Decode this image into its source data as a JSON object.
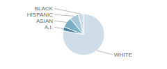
{
  "chart_data": {
    "type": "pie",
    "categories": [
      "WHITE",
      "A.I.",
      "ASIAN",
      "HISPANIC",
      "BLACK"
    ],
    "values": [
      78,
      3,
      8,
      7,
      4
    ],
    "colors": [
      "#cfdde8",
      "#4a7fa5",
      "#7aafc8",
      "#a8c8d8",
      "#c8dce8"
    ]
  }
}
